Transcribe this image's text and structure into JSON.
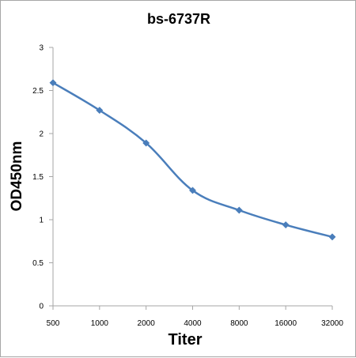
{
  "chart_data": {
    "type": "line",
    "title": "bs-6737R",
    "xlabel": "Titer",
    "ylabel": "OD450nm",
    "categories": [
      "500",
      "1000",
      "2000",
      "4000",
      "8000",
      "16000",
      "32000"
    ],
    "series": [
      {
        "values": [
          2.59,
          2.27,
          1.89,
          1.34,
          1.11,
          0.94,
          0.8
        ]
      }
    ],
    "ylim": [
      0,
      3
    ],
    "yticks": [
      "0",
      "0.5",
      "1",
      "1.5",
      "2",
      "2.5",
      "3"
    ],
    "grid": false,
    "legend": "none",
    "line_color": "#4a7ebb",
    "axis_color": "#a6a6a6"
  }
}
